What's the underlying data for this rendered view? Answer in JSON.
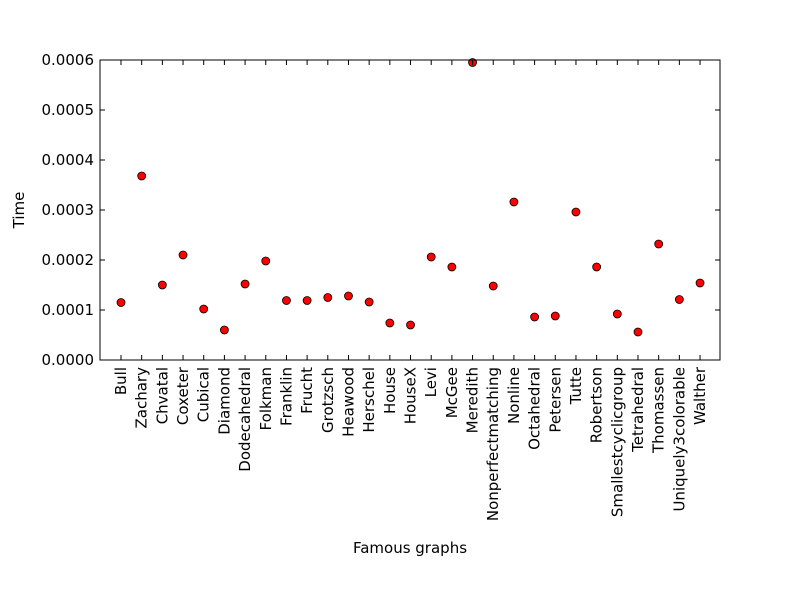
{
  "chart_data": {
    "type": "scatter",
    "title": "",
    "xlabel": "Famous graphs",
    "ylabel": "Time",
    "ylim": [
      0,
      0.0006
    ],
    "yticks": [
      "0.0000",
      "0.0001",
      "0.0002",
      "0.0003",
      "0.0004",
      "0.0005",
      "0.0006"
    ],
    "grid": false,
    "marker_color": "#ff0000",
    "marker_edge_color": "#000000",
    "categories": [
      "Bull",
      "Zachary",
      "Chvatal",
      "Coxeter",
      "Cubical",
      "Diamond",
      "Dodecahedral",
      "Folkman",
      "Franklin",
      "Frucht",
      "Grotzsch",
      "Heawood",
      "Herschel",
      "House",
      "HouseX",
      "Levi",
      "McGee",
      "Meredith",
      "Nonperfectmatching",
      "Nonline",
      "Octahedral",
      "Petersen",
      "Tutte",
      "Robertson",
      "Smallestcyclicgroup",
      "Tetrahedral",
      "Thomassen",
      "Uniquely3colorable",
      "Walther"
    ],
    "values": [
      0.000115,
      0.000368,
      0.00015,
      0.00021,
      0.000102,
      6e-05,
      0.000152,
      0.000198,
      0.000119,
      0.000119,
      0.000125,
      0.000128,
      0.000116,
      7.4e-05,
      7e-05,
      0.000206,
      0.000186,
      0.000595,
      0.000148,
      0.000316,
      8.6e-05,
      8.8e-05,
      0.000296,
      0.000186,
      9.2e-05,
      5.6e-05,
      0.000232,
      0.000121,
      0.000154
    ]
  }
}
